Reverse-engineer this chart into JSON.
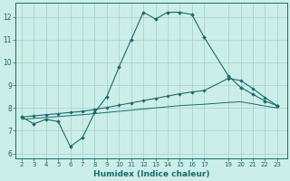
{
  "title": "",
  "xlabel": "Humidex (Indice chaleur)",
  "background_color": "#cceee8",
  "grid_color": "#aad4cc",
  "line_color": "#1a6b6b",
  "x_ticks": [
    2,
    3,
    4,
    5,
    6,
    7,
    8,
    9,
    10,
    11,
    12,
    13,
    14,
    15,
    16,
    17,
    19,
    20,
    21,
    22,
    23
  ],
  "x_tick_labels": [
    "2",
    "3",
    "4",
    "5",
    "6",
    "7",
    "8",
    "9",
    "10",
    "11",
    "12",
    "13",
    "14",
    "15",
    "16",
    "17",
    "19",
    "20",
    "21",
    "22",
    "23"
  ],
  "ylim": [
    5.8,
    12.6
  ],
  "xlim": [
    1.5,
    23.8
  ],
  "yticks": [
    6,
    7,
    8,
    9,
    10,
    11,
    12
  ],
  "curve1_x": [
    2,
    3,
    4,
    5,
    6,
    7,
    8,
    9,
    10,
    11,
    12,
    13,
    14,
    15,
    16,
    17,
    19,
    20,
    21,
    22,
    23
  ],
  "curve1_y": [
    7.6,
    7.3,
    7.5,
    7.4,
    6.3,
    6.7,
    7.8,
    8.5,
    9.8,
    11.0,
    12.2,
    11.9,
    12.2,
    12.2,
    12.1,
    11.1,
    9.4,
    8.9,
    8.6,
    8.3,
    8.1
  ],
  "curve2_x": [
    2,
    3,
    4,
    5,
    6,
    7,
    8,
    9,
    10,
    11,
    12,
    13,
    14,
    15,
    16,
    17,
    19,
    20,
    21,
    22,
    23
  ],
  "curve2_y": [
    7.6,
    7.65,
    7.7,
    7.75,
    7.8,
    7.85,
    7.93,
    8.02,
    8.12,
    8.22,
    8.32,
    8.42,
    8.52,
    8.62,
    8.7,
    8.76,
    9.3,
    9.2,
    8.85,
    8.45,
    8.1
  ],
  "curve3_x": [
    2,
    3,
    4,
    5,
    6,
    7,
    8,
    9,
    10,
    11,
    12,
    13,
    14,
    15,
    16,
    17,
    19,
    20,
    21,
    22,
    23
  ],
  "curve3_y": [
    7.5,
    7.54,
    7.58,
    7.62,
    7.66,
    7.7,
    7.75,
    7.8,
    7.85,
    7.9,
    7.95,
    8.0,
    8.05,
    8.1,
    8.13,
    8.16,
    8.24,
    8.27,
    8.18,
    8.08,
    8.0
  ]
}
